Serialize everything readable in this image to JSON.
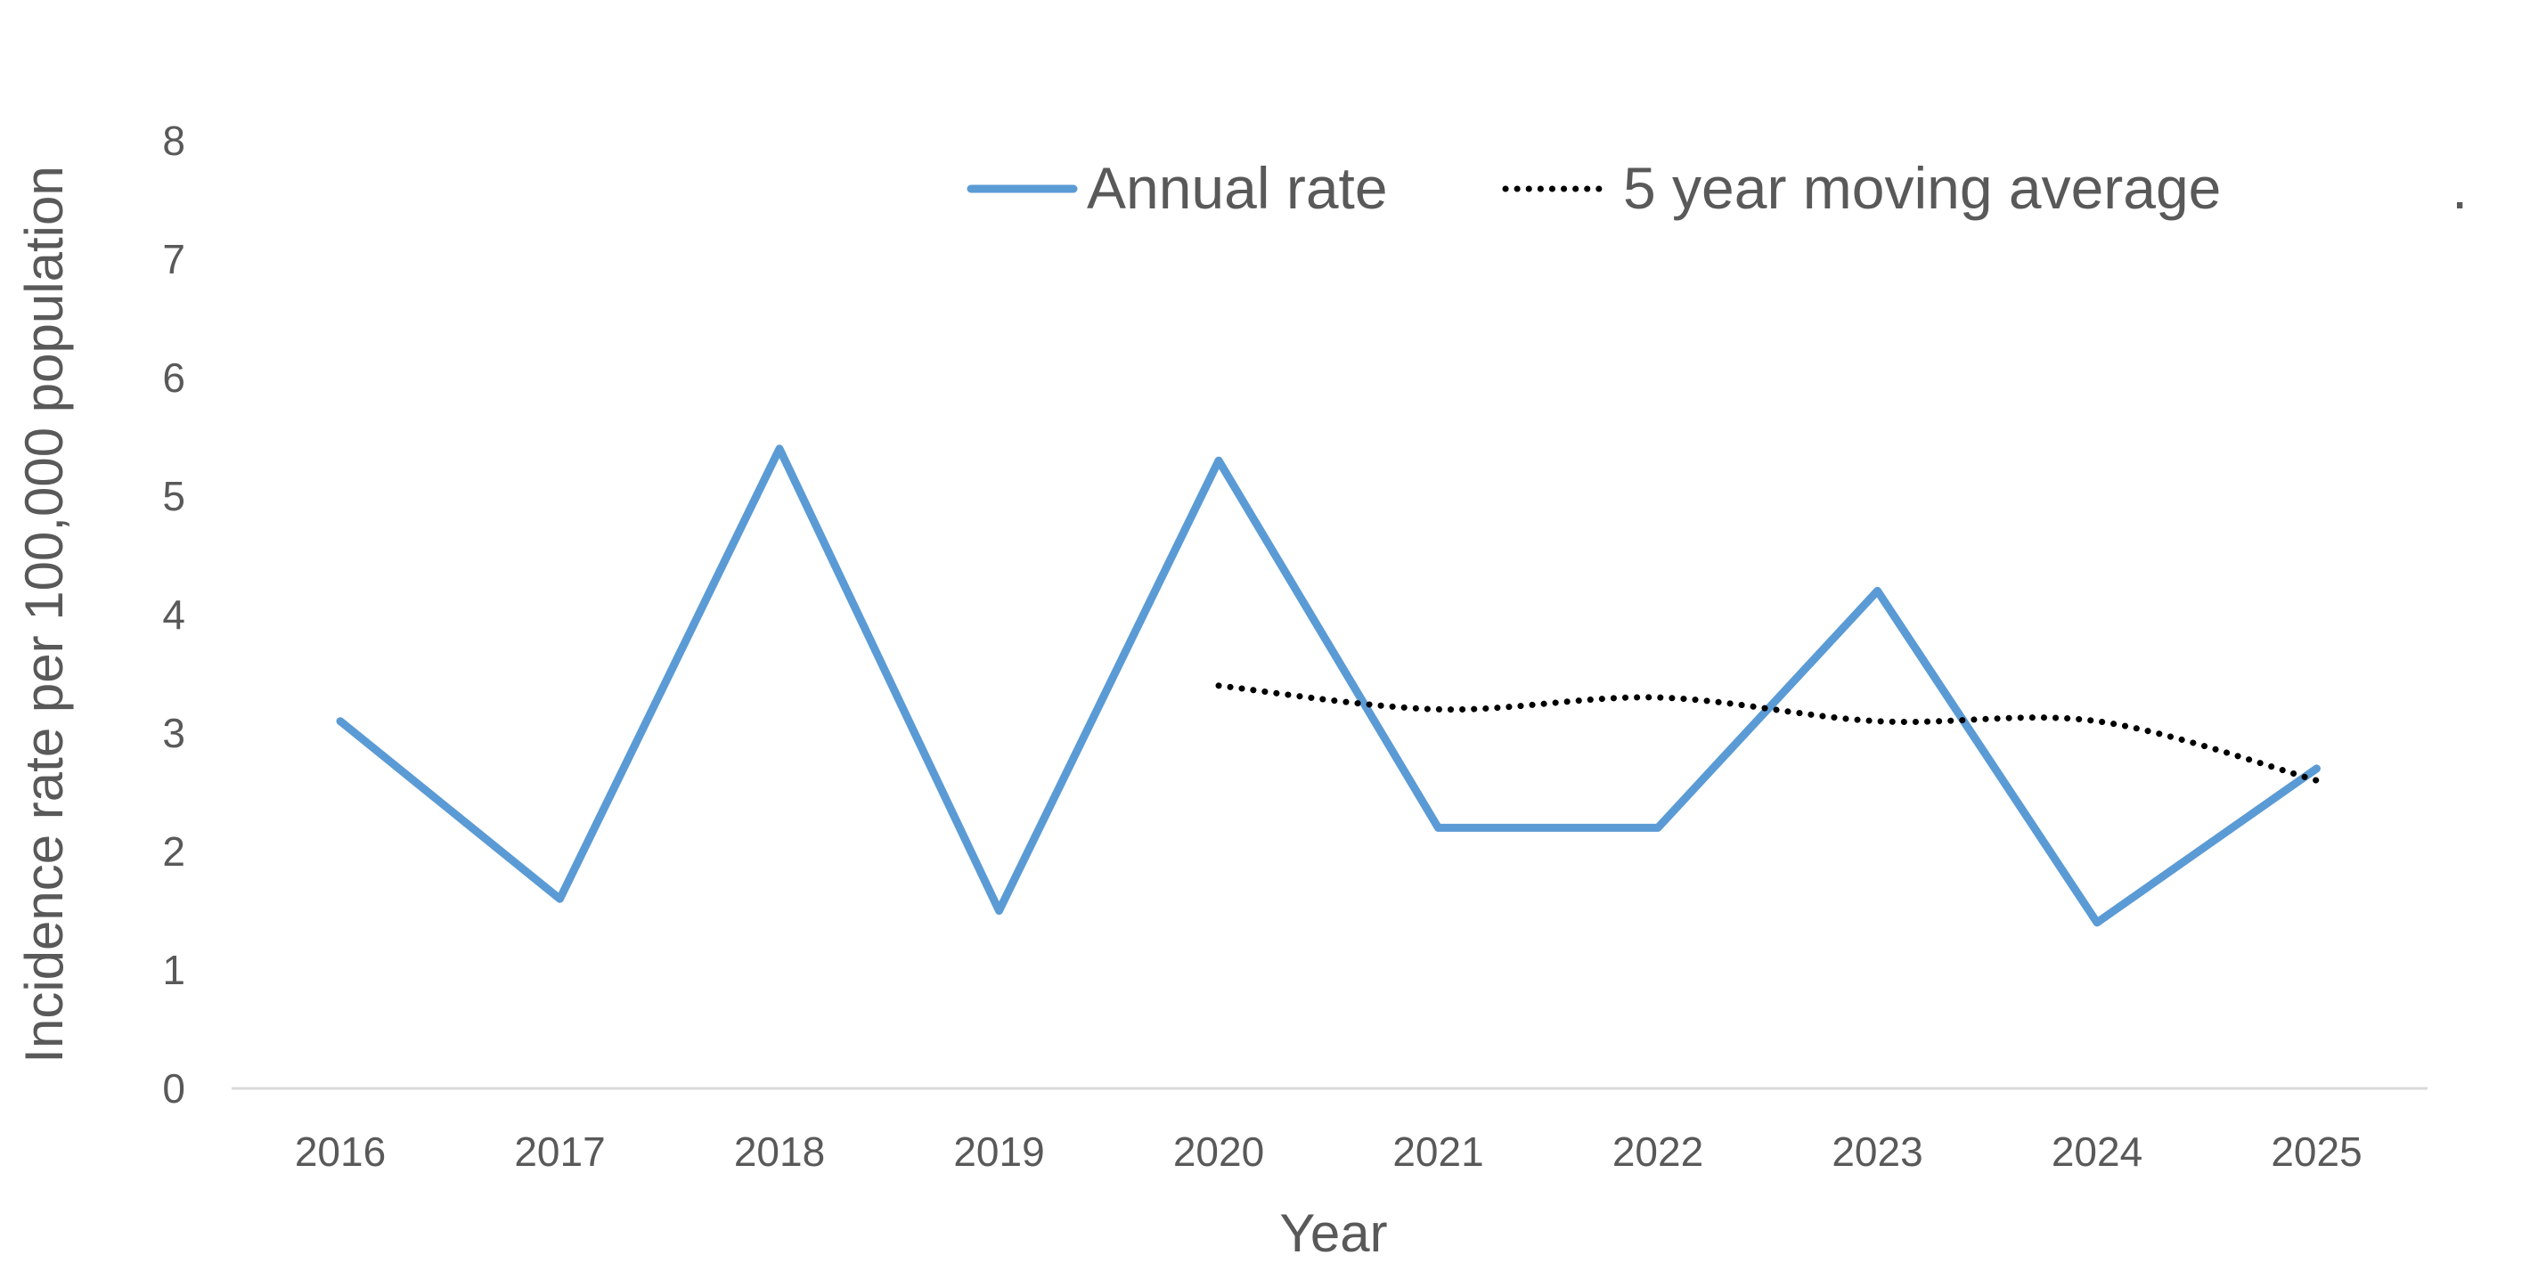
{
  "chart_data": {
    "type": "line",
    "title": "",
    "xlabel": "Year",
    "ylabel": "Incidence rate per 100,000 population",
    "categories": [
      "2016",
      "2017",
      "2018",
      "2019",
      "2020",
      "2021",
      "2022",
      "2023",
      "2024",
      "2025"
    ],
    "ylim": [
      0,
      8
    ],
    "yticks": [
      "0",
      "1",
      "2",
      "3",
      "4",
      "5",
      "6",
      "7",
      "8"
    ],
    "grid": false,
    "legend_position": "top",
    "legend_trailing_text": ".",
    "series": [
      {
        "name": "Annual rate",
        "style": "solid",
        "color": "#5B9BD5",
        "values": [
          3.1,
          1.6,
          5.4,
          1.5,
          5.3,
          2.2,
          2.2,
          4.2,
          1.4,
          2.7
        ]
      },
      {
        "name": "5 year moving average",
        "style": "dotted",
        "color": "#000000",
        "values": [
          null,
          null,
          null,
          null,
          3.4,
          3.2,
          3.3,
          3.1,
          3.1,
          2.6
        ]
      }
    ],
    "axis_line_color": "#D9D9D9",
    "text_color": "#595959"
  }
}
